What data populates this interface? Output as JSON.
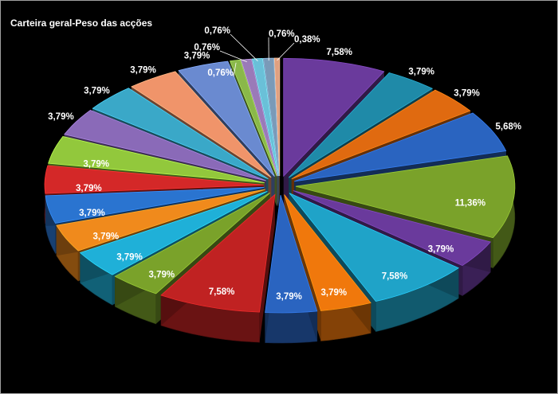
{
  "chart_data": {
    "type": "pie",
    "title": "Carteira geral-Peso das acções",
    "legend": "none",
    "slices": [
      {
        "value": 7.58,
        "label": "7,58%",
        "color": "#6a3a9c"
      },
      {
        "value": 3.79,
        "label": "3,79%",
        "color": "#1f8aa8"
      },
      {
        "value": 3.79,
        "label": "3,79%",
        "color": "#e06a10"
      },
      {
        "value": 5.68,
        "label": "5,68%",
        "color": "#2a64c0"
      },
      {
        "value": 11.36,
        "label": "11,36%",
        "color": "#7aa22a"
      },
      {
        "value": 3.79,
        "label": "3,79%",
        "color": "#6a3a9c"
      },
      {
        "value": 7.58,
        "label": "7,58%",
        "color": "#1fa3c8"
      },
      {
        "value": 3.79,
        "label": "3,79%",
        "color": "#f0780c"
      },
      {
        "value": 3.79,
        "label": "3,79%",
        "color": "#2a64c0"
      },
      {
        "value": 7.58,
        "label": "7,58%",
        "color": "#c02222"
      },
      {
        "value": 3.79,
        "label": "3,79%",
        "color": "#7aa22a"
      },
      {
        "value": 3.79,
        "label": "3,79%",
        "color": "#1fb0d8"
      },
      {
        "value": 3.79,
        "label": "3,79%",
        "color": "#f08a1c"
      },
      {
        "value": 3.79,
        "label": "3,79%",
        "color": "#2a74d0"
      },
      {
        "value": 3.79,
        "label": "3,79%",
        "color": "#d42828"
      },
      {
        "value": 3.79,
        "label": "3,79%",
        "color": "#92c83c"
      },
      {
        "value": 3.79,
        "label": "3,79%",
        "color": "#8a6ab8"
      },
      {
        "value": 3.79,
        "label": "3,79%",
        "color": "#3aa8c8"
      },
      {
        "value": 3.79,
        "label": "3,79%",
        "color": "#f0946a"
      },
      {
        "value": 3.79,
        "label": "3,79%",
        "color": "#6a8ad0"
      },
      {
        "value": 0.76,
        "label": "0,76%",
        "color": "#8ab84a"
      },
      {
        "value": 0.76,
        "label": "0,76%",
        "color": "#9a7ab8"
      },
      {
        "value": 0.76,
        "label": "0,76%",
        "color": "#6ac0d8"
      },
      {
        "value": 0.76,
        "label": "0,76%",
        "color": "#7a9ab8"
      },
      {
        "value": 0.38,
        "label": "0,38%",
        "color": "#e0a080"
      }
    ]
  }
}
